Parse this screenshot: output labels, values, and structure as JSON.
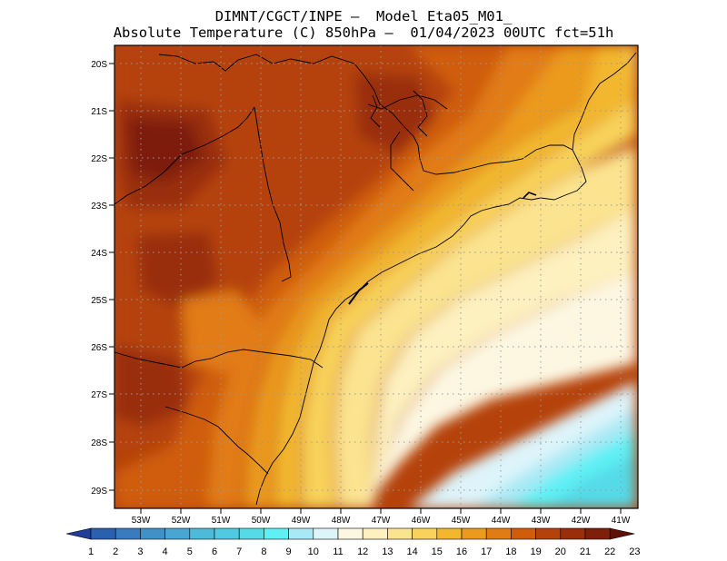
{
  "header": {
    "line1": "DIMNT/CGCT/INPE –  Model Eta05_M01_",
    "line2": "Absolute Temperature (C) 850hPa –  01/04/2023 00UTC fct=51h"
  },
  "map": {
    "variable": "Absolute Temperature",
    "units": "C",
    "level": "850hPa",
    "lat_labels": [
      "20S",
      "21S",
      "22S",
      "23S",
      "24S",
      "25S",
      "26S",
      "27S",
      "28S",
      "29S"
    ],
    "lon_labels": [
      "53W",
      "52W",
      "51W",
      "50W",
      "49W",
      "48W",
      "47W",
      "46W",
      "45W",
      "44W",
      "43W",
      "42W",
      "41W"
    ]
  },
  "colorbar": {
    "labels": [
      "1",
      "2",
      "3",
      "4",
      "5",
      "6",
      "7",
      "8",
      "9",
      "10",
      "11",
      "12",
      "13",
      "14",
      "15",
      "16",
      "17",
      "18",
      "19",
      "20",
      "21",
      "22",
      "23"
    ],
    "colors": [
      "#1f3d99",
      "#2b5fb0",
      "#3a7abf",
      "#3f91c8",
      "#48a6d2",
      "#4dbada",
      "#50cae0",
      "#55dae8",
      "#5ef0f5",
      "#a8e9f5",
      "#ddf4fa",
      "#fdf7e2",
      "#fdf1bf",
      "#fbe38f",
      "#f8d25a",
      "#f2b72f",
      "#eb9a1e",
      "#e17c14",
      "#cf5d0c",
      "#b5420a",
      "#992e0a",
      "#7d1f0b",
      "#5e1108"
    ]
  }
}
